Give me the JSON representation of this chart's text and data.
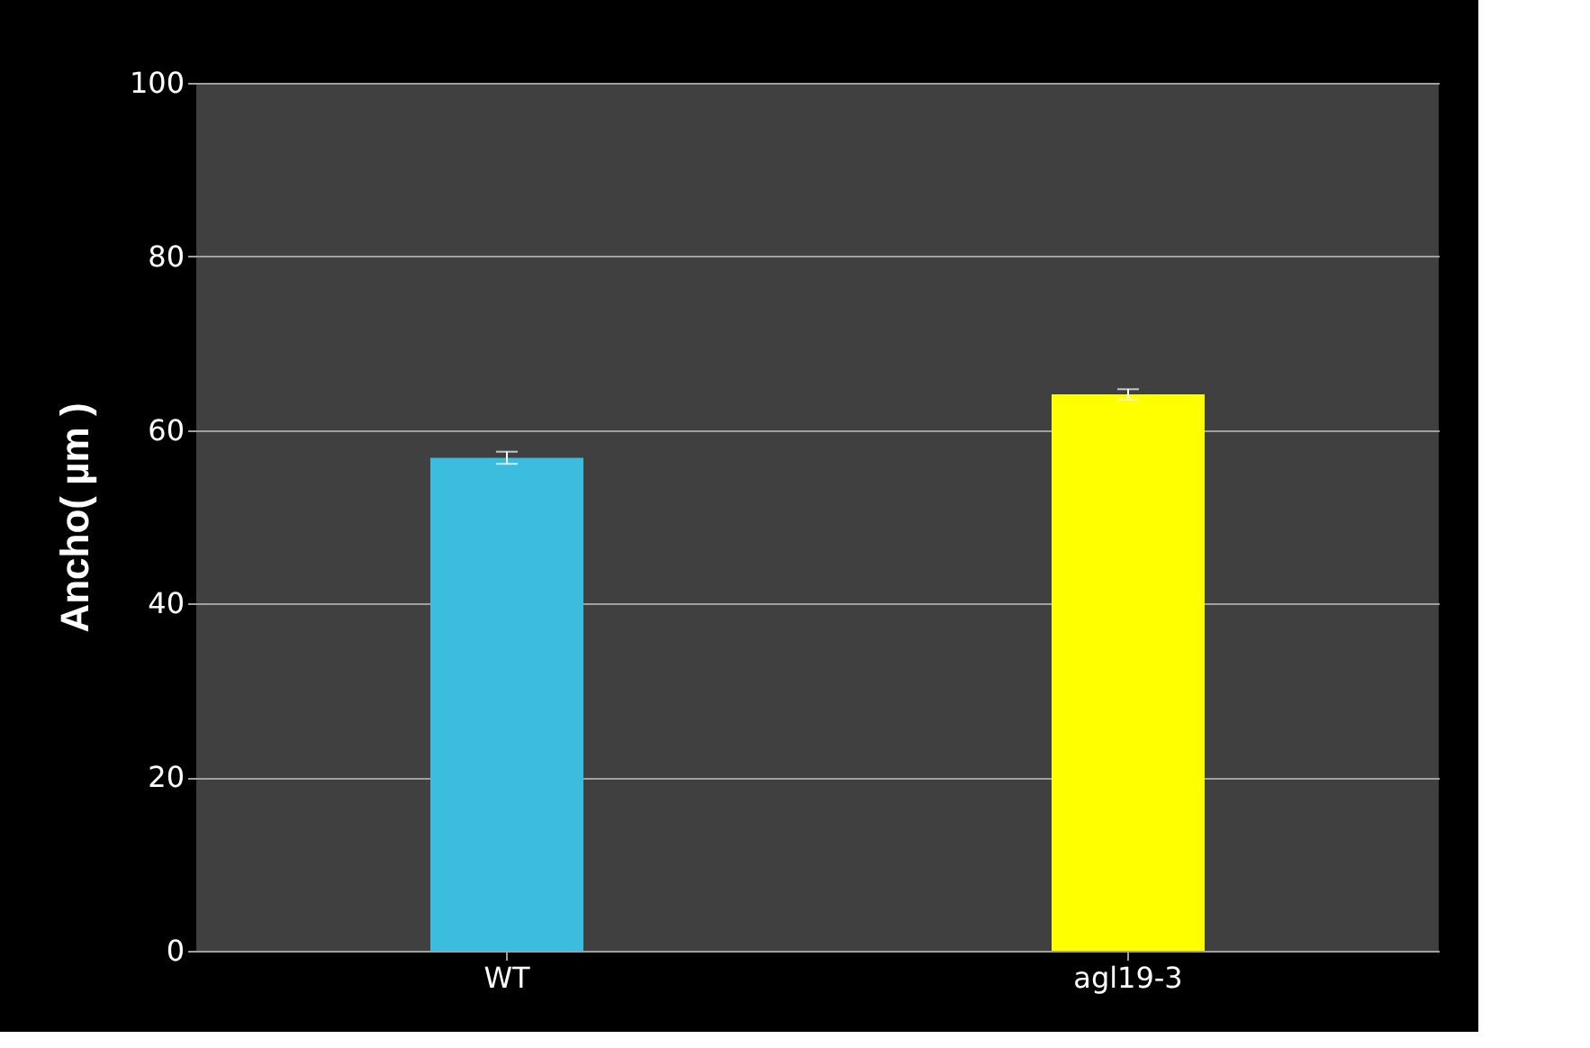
{
  "chart_data": {
    "type": "bar",
    "ylabel": "Ancho( µm )",
    "categories": [
      "WT",
      "agl19-3"
    ],
    "values": [
      56.8,
      64.1
    ],
    "errors": [
      0.7,
      0.6
    ],
    "colors": [
      "#3bbde0",
      "#ffff00"
    ],
    "ylim": [
      0,
      100
    ],
    "yticks": [
      0,
      20,
      40,
      60,
      80,
      100
    ],
    "grid": "y"
  }
}
